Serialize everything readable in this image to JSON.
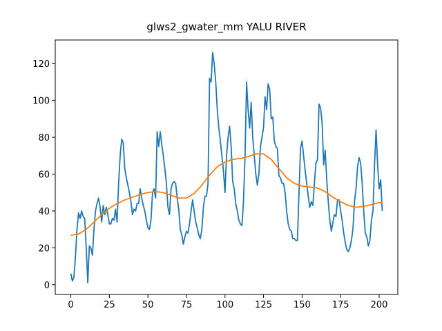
{
  "chart_data": {
    "type": "line",
    "title": "glws2_gwater_mm YALU RIVER",
    "xlim": [
      -10.1,
      212.1
    ],
    "ylim": [
      -5.3,
      132.8
    ],
    "xticks": [
      0,
      25,
      50,
      75,
      100,
      125,
      150,
      175,
      200
    ],
    "yticks": [
      0,
      20,
      40,
      60,
      80,
      100,
      120
    ],
    "series": [
      {
        "color": "#1f77b4",
        "x": [
          0,
          1,
          2,
          3,
          4,
          5,
          6,
          7,
          8,
          9,
          10,
          11,
          12,
          13,
          14,
          15,
          16,
          17,
          18,
          19,
          20,
          21,
          22,
          23,
          24,
          25,
          26,
          27,
          28,
          29,
          30,
          31,
          32,
          33,
          34,
          35,
          36,
          37,
          38,
          39,
          40,
          41,
          42,
          43,
          44,
          45,
          46,
          47,
          48,
          49,
          50,
          51,
          52,
          53,
          54,
          55,
          56,
          57,
          58,
          59,
          60,
          61,
          62,
          63,
          64,
          65,
          66,
          67,
          68,
          69,
          70,
          71,
          72,
          73,
          74,
          75,
          76,
          77,
          78,
          79,
          80,
          81,
          82,
          83,
          84,
          85,
          86,
          87,
          88,
          89,
          90,
          91,
          92,
          93,
          94,
          95,
          96,
          97,
          98,
          99,
          100,
          101,
          102,
          103,
          104,
          105,
          106,
          107,
          108,
          109,
          110,
          111,
          112,
          113,
          114,
          115,
          116,
          117,
          118,
          119,
          120,
          121,
          122,
          123,
          124,
          125,
          126,
          127,
          128,
          129,
          130,
          131,
          132,
          133,
          134,
          135,
          136,
          137,
          138,
          139,
          140,
          141,
          142,
          143,
          144,
          145,
          146,
          147,
          148,
          149,
          150,
          151,
          152,
          153,
          154,
          155,
          156,
          157,
          158,
          159,
          160,
          161,
          162,
          163,
          164,
          165,
          166,
          167,
          168,
          169,
          170,
          171,
          172,
          173,
          174,
          175,
          176,
          177,
          178,
          179,
          180,
          181,
          182,
          183,
          184,
          185,
          186,
          187,
          188,
          189,
          190,
          191,
          192,
          193,
          194,
          195,
          196,
          197,
          198,
          199,
          200,
          201,
          202
        ],
        "values": [
          6,
          2,
          4,
          15,
          30,
          39,
          36,
          40,
          37,
          36,
          20,
          1,
          21,
          20,
          16,
          30,
          40,
          44,
          47,
          42,
          34,
          43,
          38,
          42,
          38,
          33,
          33,
          36,
          35,
          41,
          34,
          55,
          70,
          79,
          77,
          63,
          58,
          54,
          50,
          45,
          38,
          41,
          40,
          44,
          44,
          52,
          47,
          43,
          40,
          35,
          31,
          30,
          35,
          50,
          52,
          47,
          83,
          75,
          83,
          76,
          70,
          63,
          55,
          42,
          38,
          52,
          55,
          56,
          55,
          47,
          41,
          30,
          27,
          22,
          26,
          29,
          28,
          33,
          40,
          46,
          40,
          34,
          31,
          27,
          25,
          30,
          42,
          48,
          48,
          55,
          112,
          110,
          126,
          120,
          110,
          95,
          85,
          78,
          70,
          62,
          50,
          70,
          80,
          86,
          75,
          56,
          52,
          44,
          40,
          35,
          33,
          32,
          45,
          70,
          110,
          95,
          85,
          99,
          80,
          70,
          60,
          54,
          60,
          75,
          80,
          85,
          102,
          95,
          109,
          106,
          90,
          91,
          78,
          75,
          74,
          59,
          58,
          55,
          55,
          50,
          40,
          33,
          30,
          29,
          25,
          25,
          24,
          24,
          50,
          74,
          78,
          70,
          62,
          55,
          48,
          42,
          45,
          43,
          55,
          66,
          68,
          98,
          96,
          88,
          65,
          73,
          57,
          45,
          35,
          29,
          34,
          38,
          37,
          46,
          46,
          40,
          35,
          28,
          23,
          19,
          18,
          20,
          24,
          30,
          45,
          52,
          64,
          69,
          66,
          55,
          40,
          28,
          26,
          21,
          24,
          35,
          40,
          65,
          84,
          65,
          52,
          57,
          40
        ]
      },
      {
        "color": "#ff7f0e",
        "x": [
          0,
          5,
          10,
          15,
          20,
          25,
          30,
          35,
          40,
          45,
          50,
          55,
          60,
          65,
          70,
          75,
          80,
          85,
          90,
          95,
          100,
          105,
          110,
          115,
          120,
          125,
          130,
          135,
          140,
          145,
          150,
          155,
          160,
          165,
          170,
          175,
          180,
          185,
          190,
          195,
          200,
          202
        ],
        "values": [
          26.8,
          27.5,
          30,
          34,
          38,
          41.5,
          44,
          46,
          47.5,
          49,
          50,
          50.5,
          50,
          48.5,
          47,
          47,
          49.5,
          54,
          59.5,
          64,
          66.5,
          68,
          68.5,
          69.5,
          71,
          71,
          68,
          63,
          58,
          55,
          53.5,
          53,
          52.5,
          50.5,
          47.5,
          45,
          43,
          42,
          42.5,
          43.5,
          44.5,
          44.5
        ]
      }
    ]
  }
}
